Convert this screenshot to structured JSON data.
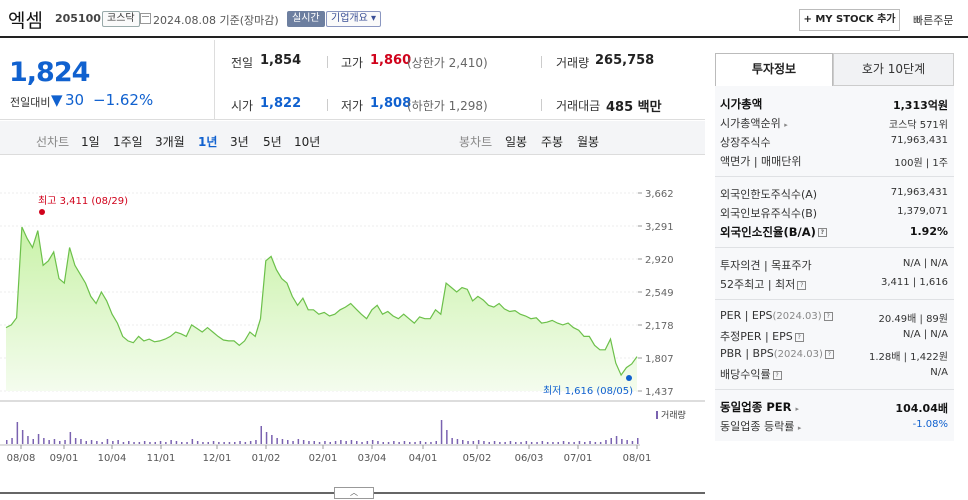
{
  "header": {
    "stock_name": "엑셈",
    "stock_code": "205100",
    "market": "코스닥",
    "date": "2024.08.08",
    "date_suffix": "기준(장마감)",
    "realtime": "실시간",
    "company_overview": "기업개요 ▾",
    "my_stock": "+ MY STOCK 추가",
    "quick_order": "빠른주문"
  },
  "price": {
    "current": "1,824",
    "change_label": "전일대비",
    "change_arrow": "▼",
    "change_amount": "30",
    "change_percent": "−1.62%"
  },
  "quote": {
    "prev_close": {
      "label": "전일",
      "value": "1,854"
    },
    "high": {
      "label": "고가",
      "value": "1,860",
      "limit": "(상한가 2,410)"
    },
    "volume": {
      "label": "거래량",
      "value": "265,758"
    },
    "open": {
      "label": "시가",
      "value": "1,822"
    },
    "low": {
      "label": "저가",
      "value": "1,808",
      "limit": "(하한가 1,298)"
    },
    "turnover": {
      "label": "거래대금",
      "value": "485 백만"
    }
  },
  "period_bar": {
    "line_label": "선차트",
    "periods": [
      "1일",
      "1주일",
      "3개월",
      "1년",
      "3년",
      "5년",
      "10년"
    ],
    "active": "1년",
    "candle_label": "봉차트",
    "candles": [
      "일봉",
      "주봉",
      "월봉"
    ]
  },
  "chart_data": {
    "type": "area",
    "ylim": [
      1437,
      3662
    ],
    "y_ticks": [
      "3,662",
      "3,291",
      "2,920",
      "2,549",
      "2,178",
      "1,807",
      "1,437"
    ],
    "x_ticks": [
      "08/08",
      "09/01",
      "10/04",
      "11/01",
      "12/01",
      "01/02",
      "02/01",
      "03/04",
      "04/01",
      "05/02",
      "06/03",
      "07/01",
      "08/01"
    ],
    "max_label": "최고 3,411 (08/29)",
    "min_label": "최저 1,616 (08/05)",
    "volume_label": "거래량",
    "values": [
      2150,
      2180,
      2260,
      3280,
      3150,
      3050,
      3240,
      2850,
      2900,
      3000,
      2700,
      2650,
      3050,
      2850,
      2750,
      2650,
      2500,
      2420,
      2550,
      2450,
      2300,
      2200,
      2050,
      2000,
      1980,
      2050,
      2000,
      2020,
      1990,
      2000,
      2020,
      2050,
      2100,
      2080,
      2050,
      2180,
      2140,
      2100,
      2150,
      2100,
      2050,
      2010,
      2000,
      2000,
      1950,
      2000,
      2100,
      2050,
      2250,
      2900,
      2950,
      2800,
      2700,
      2650,
      2500,
      2400,
      2480,
      2350,
      2350,
      2300,
      2320,
      2280,
      2300,
      2350,
      2380,
      2420,
      2360,
      2300,
      2250,
      2350,
      2400,
      2300,
      2330,
      2280,
      2250,
      2300,
      2250,
      2200,
      2270,
      2250,
      2250,
      2350,
      2300,
      2650,
      2600,
      2550,
      2600,
      2580,
      2450,
      2500,
      2460,
      2400,
      2380,
      2420,
      2360,
      2330,
      2340,
      2300,
      2280,
      2250,
      2260,
      2200,
      2210,
      2230,
      2200,
      2180,
      2200,
      2150,
      2120,
      2050,
      2050,
      1950,
      1900,
      1900,
      2020,
      1750,
      1616,
      1700,
      1740,
      1824
    ]
  },
  "side": {
    "tabs": [
      "투자정보",
      "호가 10단계"
    ],
    "rows": [
      {
        "label": "시가총액",
        "value": "1,313억원",
        "strong": true
      },
      {
        "label": "시가총액순위",
        "tri": "▸",
        "value": "코스닥 571위"
      },
      {
        "label": "상장주식수",
        "value": "71,963,431"
      },
      {
        "label": "액면가 | 매매단위",
        "value": "100원 | 1주"
      },
      {
        "label": "외국인한도주식수(A)",
        "value": "71,963,431"
      },
      {
        "label": "외국인보유주식수(B)",
        "value": "1,379,071"
      },
      {
        "label": "외국인소진율(B/A)",
        "q": "?",
        "value": "1.92%",
        "strong": true
      },
      {
        "label": "투자의견 | 목표주가",
        "value": "N/A | N/A"
      },
      {
        "label": "52주최고 | 최저",
        "q": "?",
        "value": "3,411 | 1,616"
      },
      {
        "label": "PER | EPS",
        "sub": "(2024.03)",
        "q": "?",
        "value": "20.49배 | 89원"
      },
      {
        "label": "추정PER | EPS",
        "q": "?",
        "value": "N/A | N/A"
      },
      {
        "label": "PBR | BPS",
        "sub": "(2024.03)",
        "q": "?",
        "value": "1.28배 | 1,422원"
      },
      {
        "label": "배당수익률",
        "q": "?",
        "value": "N/A"
      },
      {
        "label": "동일업종 PER",
        "tri": "▸",
        "value": "104.04배",
        "strong": true
      },
      {
        "label": "동일업종 등락률",
        "tri": "▸",
        "value": "-1.08%",
        "blue": true
      }
    ]
  },
  "expand_icon": "chevron-up-icon"
}
